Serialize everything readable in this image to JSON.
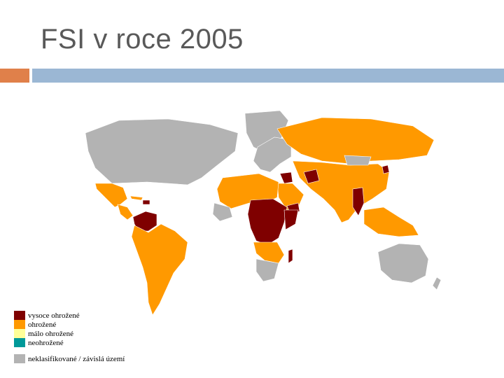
{
  "slide": {
    "title": "FSI v roce 2005"
  },
  "colors": {
    "accent_bar": "#e0804a",
    "main_bar": "#9bb7d4",
    "highly_endangered": "#7f0000",
    "endangered": "#ff9900",
    "low_endangered": "#ffff99",
    "not_endangered": "#009999",
    "unclassified": "#b3b3b3"
  },
  "legend": {
    "items": [
      {
        "label": "vysoce ohrožené",
        "color": "#7f0000"
      },
      {
        "label": "ohrožené",
        "color": "#ff9900"
      },
      {
        "label": "málo ohrožené",
        "color": "#ffff99"
      },
      {
        "label": "neohrožené",
        "color": "#009999"
      }
    ],
    "unclassified": {
      "label": "neklasifikované / závislá území",
      "color": "#b3b3b3"
    }
  }
}
